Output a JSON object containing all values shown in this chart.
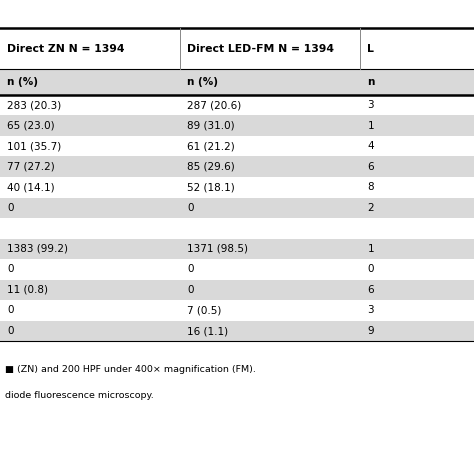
{
  "title": "",
  "col_headers": [
    "Direct ZN N = 1394",
    "Direct LED-FM N = 1394",
    "L"
  ],
  "col_headers_sub": [
    "n (%)",
    "n (%)",
    "n"
  ],
  "rows": [
    [
      "283 (20.3)",
      "287 (20.6)",
      "3"
    ],
    [
      "65 (23.0)",
      "89 (31.0)",
      "1"
    ],
    [
      "101 (35.7)",
      "61 (21.2)",
      "4"
    ],
    [
      "77 (27.2)",
      "85 (29.6)",
      "6"
    ],
    [
      "40 (14.1)",
      "52 (18.1)",
      "8"
    ],
    [
      "0",
      "0",
      "2"
    ],
    [
      "",
      "",
      ""
    ],
    [
      "1383 (99.2)",
      "1371 (98.5)",
      "1"
    ],
    [
      "0",
      "0",
      "0"
    ],
    [
      "11 (0.8)",
      "0",
      "6"
    ],
    [
      "0",
      "7 (0.5)",
      "3"
    ],
    [
      "0",
      "16 (1.1)",
      "9"
    ]
  ],
  "footnote1": "■ (ZN) and 200 HPF under 400× magnification (FM).",
  "footnote2": "diode fluorescence microscopy.",
  "bg_color_alt": "#d9d9d9",
  "bg_color_white": "#ffffff",
  "header_line_color": "#000000",
  "text_color": "#000000",
  "font_size": 7.5,
  "header_font_size": 7.8
}
